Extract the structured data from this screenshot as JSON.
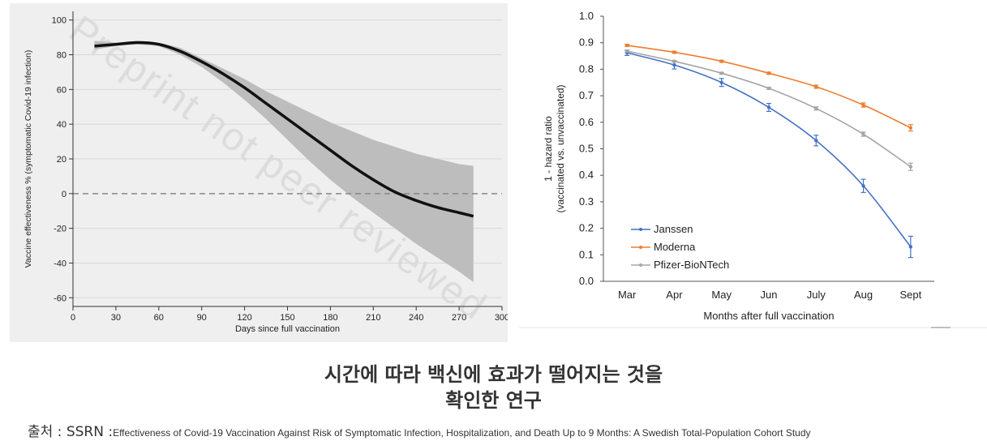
{
  "caption": {
    "line1": "시간에 따라 백신에 효과가 떨어지는 것을",
    "line2": "확인한 연구"
  },
  "source": {
    "label": "출처 : SSRN :",
    "text": "Effectiveness of Covid-19 Vaccination Against Risk of Symptomatic Infection, Hospitalization, and Death Up to 9 Months: A Swedish Total-Population Cohort Study"
  },
  "watermark": "Preprint not peer reviewed",
  "chart_data": [
    {
      "type": "line",
      "ylabel": "Vaccine effectiveness % (symptomatic Covid-19 infection)",
      "xlabel": "Days since full vaccination",
      "xlim": [
        0,
        300
      ],
      "ylim": [
        -65,
        105
      ],
      "x_ticks": [
        0,
        30,
        60,
        90,
        120,
        150,
        180,
        210,
        240,
        270,
        300
      ],
      "y_ticks": [
        -60,
        -40,
        -20,
        0,
        20,
        40,
        60,
        80,
        100
      ],
      "reference_line": 0,
      "grid": "horizontal",
      "colors": {
        "line": "#111111",
        "band": "#bdbdbd",
        "background": "#efefef"
      },
      "series": [
        {
          "x": [
            15,
            30,
            45,
            60,
            75,
            90,
            105,
            120,
            135,
            150,
            165,
            180,
            195,
            210,
            225,
            240,
            255,
            270,
            280
          ],
          "estimate": [
            85,
            86,
            87,
            86,
            82,
            76,
            69,
            61,
            52,
            43,
            34,
            25,
            16,
            8,
            1,
            -4,
            -8,
            -11,
            -13
          ],
          "lower": [
            83,
            85,
            86,
            85,
            80,
            73,
            64,
            54,
            43,
            31,
            19,
            8,
            -2,
            -11,
            -20,
            -29,
            -37,
            -45,
            -51
          ],
          "upper": [
            88,
            87,
            88,
            87,
            84,
            78,
            72,
            66,
            59,
            53,
            47,
            41,
            36,
            31,
            27,
            23,
            20,
            17,
            16
          ]
        }
      ]
    },
    {
      "type": "line",
      "ylabel": "1 - hazard ratio\n(vaccinated vs. unvaccinated)",
      "xlabel": "Months after full vaccination",
      "categories": [
        "Mar",
        "Apr",
        "May",
        "Jun",
        "July",
        "Aug",
        "Sept"
      ],
      "ylim": [
        0.0,
        1.0
      ],
      "y_ticks": [
        0.0,
        0.1,
        0.2,
        0.3,
        0.4,
        0.5,
        0.6,
        0.7,
        0.8,
        0.9,
        1.0
      ],
      "legend": "bottom-left",
      "series": [
        {
          "name": "Janssen",
          "color": "#4472c4",
          "values": [
            0.862,
            0.816,
            0.75,
            0.656,
            0.531,
            0.36,
            0.13
          ],
          "err": [
            0.01,
            0.015,
            0.015,
            0.015,
            0.02,
            0.025,
            0.04
          ]
        },
        {
          "name": "Moderna",
          "color": "#ed7d31",
          "values": [
            0.89,
            0.864,
            0.83,
            0.785,
            0.734,
            0.665,
            0.579
          ],
          "err": [
            0.004,
            0.004,
            0.004,
            0.004,
            0.006,
            0.008,
            0.012
          ]
        },
        {
          "name": "Pfizer-BioNTech",
          "color": "#a5a5a5",
          "values": [
            0.868,
            0.83,
            0.785,
            0.728,
            0.652,
            0.555,
            0.432
          ],
          "err": [
            0.003,
            0.003,
            0.003,
            0.004,
            0.006,
            0.008,
            0.014
          ]
        }
      ]
    }
  ]
}
